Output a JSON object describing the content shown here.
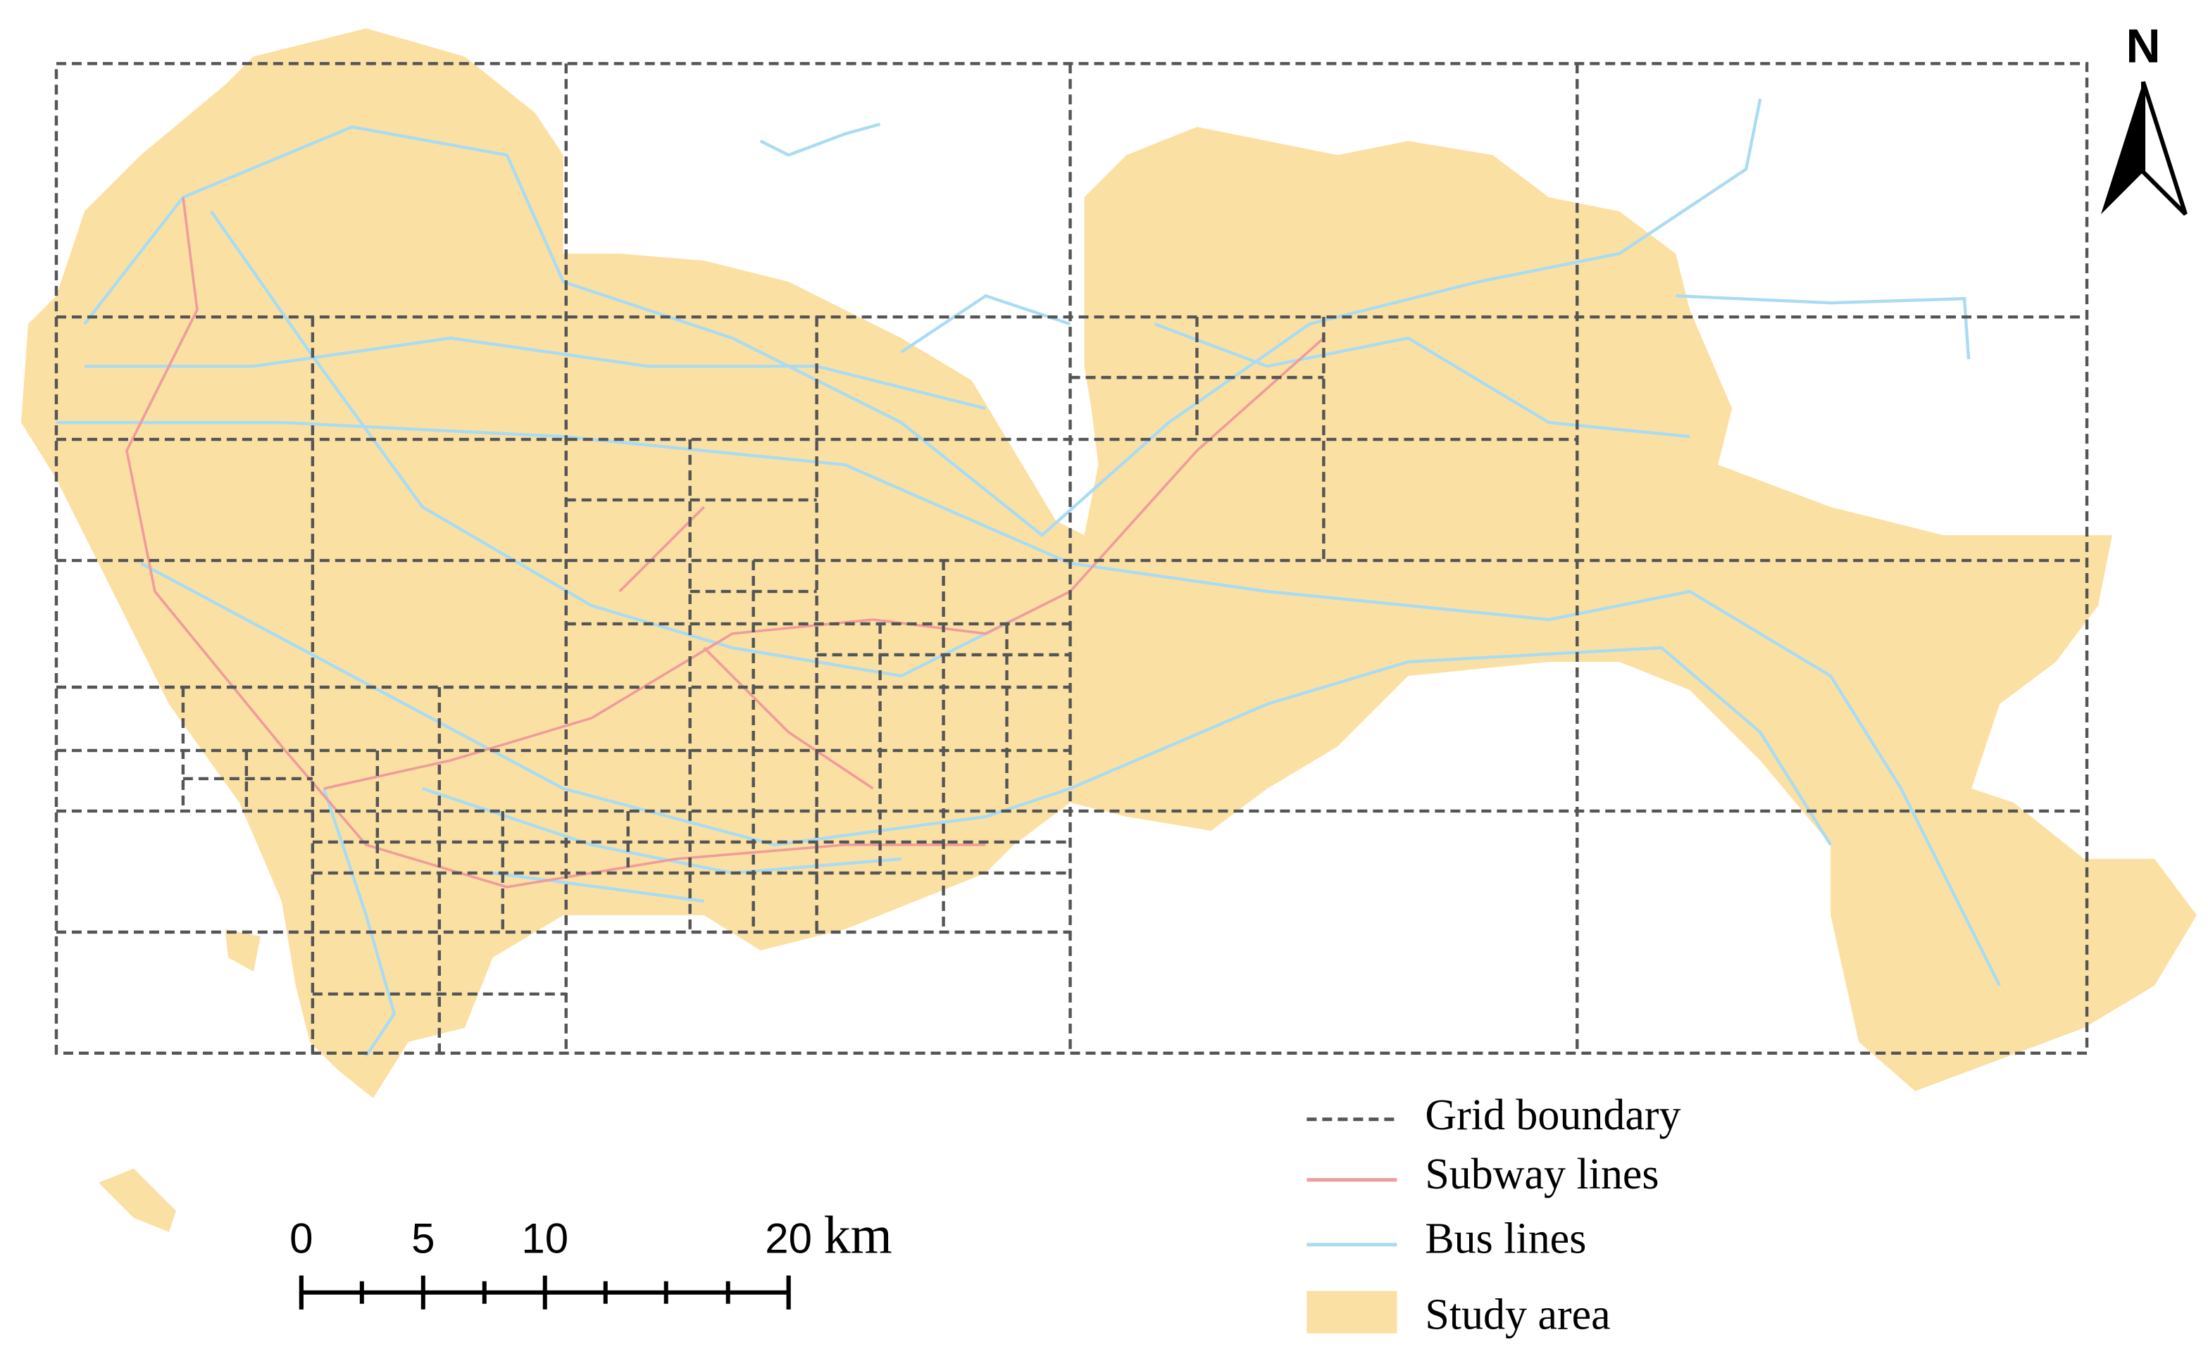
{
  "legend": {
    "items": [
      "Grid boundary",
      "Subway lines",
      "Bus lines",
      "Study area"
    ]
  },
  "scale_bar": {
    "ticks": [
      0,
      5,
      10,
      20
    ],
    "unit": "km"
  },
  "north_arrow": {
    "label": "N"
  }
}
